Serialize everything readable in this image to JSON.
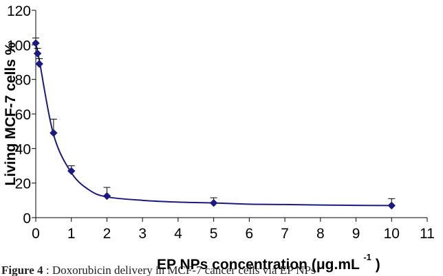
{
  "chart_data": {
    "type": "scatter",
    "x": [
      0,
      0.05,
      0.1,
      0.5,
      1,
      2,
      5,
      10
    ],
    "y": [
      101,
      95,
      89,
      49,
      27,
      12.5,
      8.5,
      7
    ],
    "error": [
      3,
      3,
      3,
      8,
      3,
      5,
      3,
      4
    ],
    "xlabel": "EP NPs concentration (μg.mL",
    "xlabel_superscript": "-1",
    "xlabel_close": ")",
    "ylabel": "Living MCF-7 cells %",
    "xlim": [
      0,
      11
    ],
    "ylim": [
      0,
      120
    ],
    "xticks": [
      0,
      1,
      2,
      3,
      4,
      5,
      6,
      7,
      8,
      9,
      10,
      11
    ],
    "yticks": [
      0,
      20,
      40,
      60,
      80,
      100,
      120
    ],
    "curve": [
      [
        0,
        101
      ],
      [
        0.1,
        91
      ],
      [
        0.5,
        48
      ],
      [
        1,
        26
      ],
      [
        1.5,
        16
      ],
      [
        2,
        12
      ],
      [
        3,
        10
      ],
      [
        4,
        9
      ],
      [
        5,
        8.5
      ],
      [
        6,
        7.8
      ],
      [
        7,
        7.6
      ],
      [
        8,
        7.3
      ],
      [
        9,
        7.1
      ],
      [
        10,
        7
      ]
    ],
    "grid": false,
    "color": "#1a1a80"
  },
  "caption": {
    "label": "Figure 4",
    "text": ": Doxorubicin delivery in MCF-7 cancer cells via EP NPs"
  }
}
